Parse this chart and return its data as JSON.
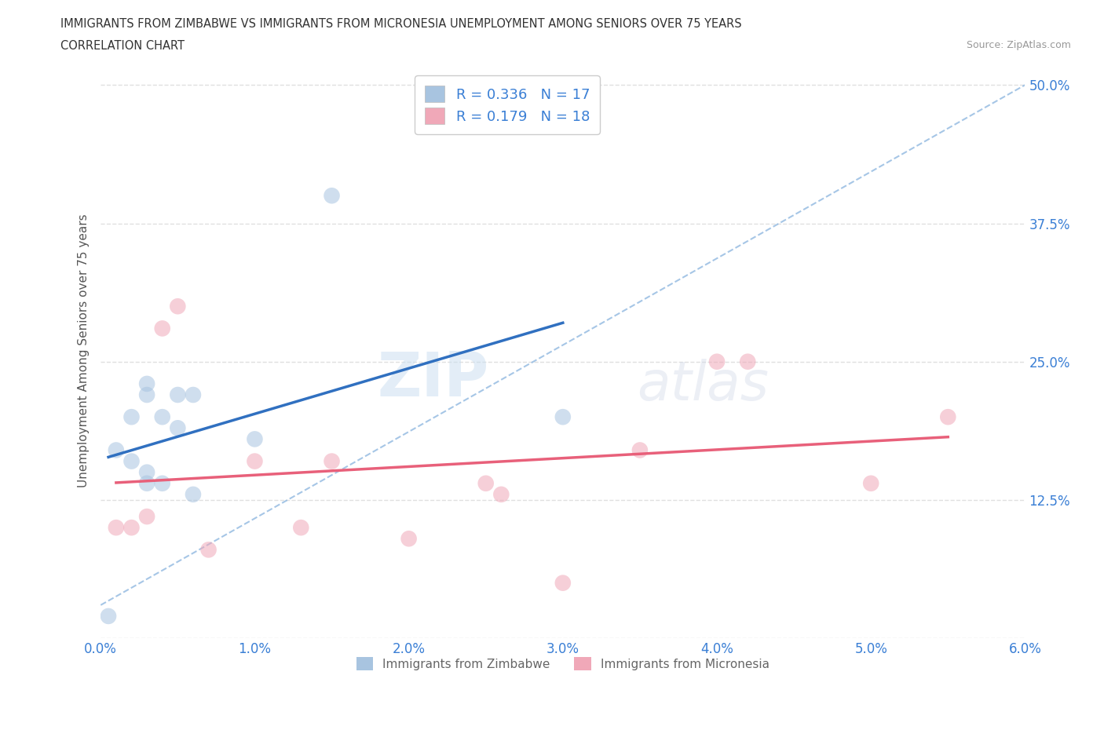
{
  "title_line1": "IMMIGRANTS FROM ZIMBABWE VS IMMIGRANTS FROM MICRONESIA UNEMPLOYMENT AMONG SENIORS OVER 75 YEARS",
  "title_line2": "CORRELATION CHART",
  "source": "Source: ZipAtlas.com",
  "ylabel": "Unemployment Among Seniors over 75 years",
  "xlim": [
    0.0,
    0.06
  ],
  "ylim": [
    0.0,
    0.52
  ],
  "xticks": [
    0.0,
    0.01,
    0.02,
    0.03,
    0.04,
    0.05,
    0.06
  ],
  "xtick_labels": [
    "0.0%",
    "1.0%",
    "2.0%",
    "3.0%",
    "4.0%",
    "5.0%",
    "6.0%"
  ],
  "yticks": [
    0.0,
    0.125,
    0.25,
    0.375,
    0.5
  ],
  "ytick_labels": [
    "",
    "12.5%",
    "25.0%",
    "37.5%",
    "50.0%"
  ],
  "zimbabwe_color": "#a8c4e0",
  "micronesia_color": "#f0a8b8",
  "zimbabwe_line_color": "#3070c0",
  "micronesia_line_color": "#e8607a",
  "dashed_line_color": "#90b8e0",
  "legend_r_color": "#3a7fd5",
  "zimbabwe_R": 0.336,
  "zimbabwe_N": 17,
  "micronesia_R": 0.179,
  "micronesia_N": 18,
  "watermark_zip": "ZIP",
  "watermark_atlas": "atlas",
  "zimbabwe_x": [
    0.0005,
    0.001,
    0.002,
    0.002,
    0.003,
    0.003,
    0.003,
    0.003,
    0.004,
    0.004,
    0.005,
    0.005,
    0.006,
    0.006,
    0.01,
    0.015,
    0.03
  ],
  "zimbabwe_y": [
    0.02,
    0.17,
    0.16,
    0.2,
    0.14,
    0.15,
    0.22,
    0.23,
    0.2,
    0.14,
    0.19,
    0.22,
    0.13,
    0.22,
    0.18,
    0.4,
    0.2
  ],
  "micronesia_x": [
    0.001,
    0.002,
    0.003,
    0.004,
    0.005,
    0.007,
    0.01,
    0.013,
    0.015,
    0.02,
    0.025,
    0.026,
    0.03,
    0.035,
    0.04,
    0.042,
    0.05,
    0.055
  ],
  "micronesia_y": [
    0.1,
    0.1,
    0.11,
    0.28,
    0.3,
    0.08,
    0.16,
    0.1,
    0.16,
    0.09,
    0.14,
    0.13,
    0.05,
    0.17,
    0.25,
    0.25,
    0.14,
    0.2
  ],
  "scatter_size": 220,
  "scatter_alpha": 0.55,
  "background_color": "#ffffff",
  "grid_color": "#e0e0e0",
  "grid_linestyle": "--"
}
